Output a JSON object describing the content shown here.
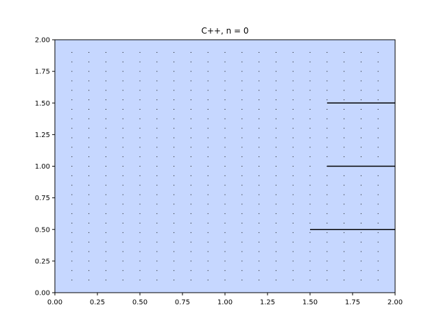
{
  "chart_data": {
    "type": "scatter",
    "title": "C++, n = 0",
    "xlabel": "",
    "ylabel": "",
    "xlim": [
      0.0,
      2.0
    ],
    "ylim": [
      0.0,
      2.0
    ],
    "x_ticks": [
      "0.00",
      "0.25",
      "0.50",
      "0.75",
      "1.00",
      "1.25",
      "1.50",
      "1.75",
      "2.00"
    ],
    "y_ticks": [
      "0.00",
      "0.25",
      "0.50",
      "0.75",
      "1.00",
      "1.25",
      "1.50",
      "1.75",
      "2.00"
    ],
    "grid": false,
    "background_color": "#c6d7ff",
    "mark_color": "#000000",
    "dots": {
      "x_start": 0.1,
      "x_step": 0.1,
      "y_start": 0.1,
      "y_step": 0.075,
      "nx": 20,
      "ny": 25
    },
    "segments": [
      {
        "x": [
          1.6,
          2.0
        ],
        "y": 1.5
      },
      {
        "x": [
          1.6,
          2.0
        ],
        "y": 1.0
      },
      {
        "x": [
          1.5,
          2.0
        ],
        "y": 0.5
      }
    ]
  }
}
